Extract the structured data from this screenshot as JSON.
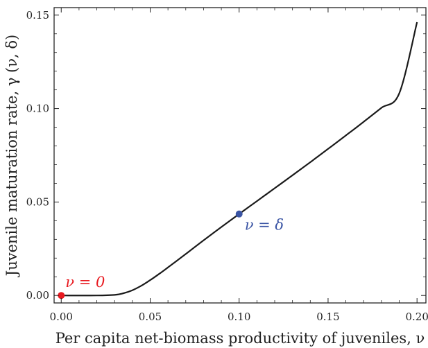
{
  "chart_data": {
    "type": "line",
    "xlabel": "Per capita net-biomass productivity of juveniles, ν",
    "ylabel": "Juvenile maturation rate, γ (ν, δ)",
    "xlim": [
      -0.004,
      0.205
    ],
    "ylim": [
      -0.004,
      0.154
    ],
    "x_ticks": [
      0.0,
      0.05,
      0.1,
      0.15,
      0.2
    ],
    "x_tick_labels": [
      "0.00",
      "0.05",
      "0.10",
      "0.15",
      "0.20"
    ],
    "y_ticks": [
      0.0,
      0.05,
      0.1,
      0.15
    ],
    "y_tick_labels": [
      "0.00",
      "0.05",
      "0.10",
      "0.15"
    ],
    "grid": false,
    "series": [
      {
        "color": "#1a1a1a",
        "x": [
          0.0,
          0.02,
          0.03,
          0.035,
          0.04,
          0.045,
          0.05,
          0.055,
          0.06,
          0.07,
          0.08,
          0.09,
          0.1,
          0.11,
          0.12,
          0.13,
          0.14,
          0.15,
          0.16,
          0.17,
          0.18,
          0.19,
          0.2
        ],
        "y": [
          0.0,
          0.0,
          0.0003,
          0.0012,
          0.0028,
          0.0052,
          0.0082,
          0.0115,
          0.015,
          0.0222,
          0.0295,
          0.0366,
          0.0436,
          0.0505,
          0.0574,
          0.0643,
          0.0713,
          0.0784,
          0.0856,
          0.0929,
          0.1004,
          0.1081,
          0.1462
        ]
      }
    ],
    "points": [
      {
        "name": "nu-zero",
        "x": 0.0,
        "y": 0.0,
        "color": "#e8191f",
        "label": "ν = 0"
      },
      {
        "name": "nu-delta",
        "x": 0.1,
        "y": 0.0436,
        "color": "#3a54a4",
        "label": "ν = δ"
      }
    ]
  }
}
